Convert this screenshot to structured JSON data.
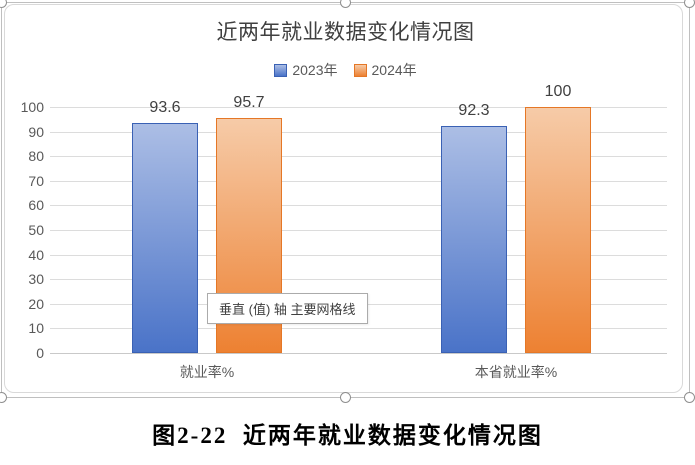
{
  "chart_data": {
    "type": "bar",
    "title": "近两年就业数据变化情况图",
    "categories": [
      "就业率%",
      "本省就业率%"
    ],
    "series": [
      {
        "name": "2023年",
        "values": [
          93.6,
          92.3
        ],
        "border_color": "#3a61b4",
        "fill_top": "#acbee5",
        "fill_bottom": "#4a73c8"
      },
      {
        "name": "2024年",
        "values": [
          95.7,
          100
        ],
        "border_color": "#e57726",
        "fill_top": "#f6cba8",
        "fill_bottom": "#ed8132"
      }
    ],
    "ylim": [
      0,
      100
    ],
    "yticks": [
      0,
      10,
      20,
      30,
      40,
      50,
      60,
      70,
      80,
      90,
      100
    ],
    "grid": true,
    "gridline_color": "#dcdcdc",
    "legend_position": "top",
    "xlabel": "",
    "ylabel": ""
  },
  "tooltip": {
    "text": "垂直 (值) 轴 主要网格线"
  },
  "caption": {
    "text": "图2-22  近两年就业数据变化情况图"
  }
}
